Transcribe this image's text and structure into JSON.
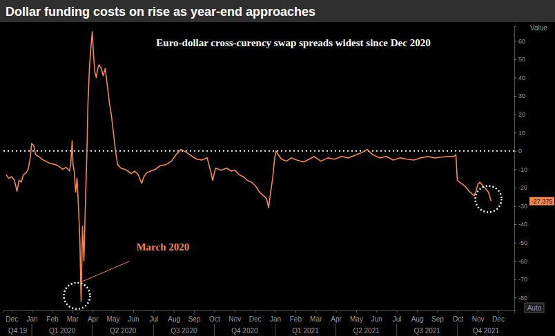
{
  "chart_data": {
    "type": "line",
    "title": "Dollar funding costs on rise as year-end approaches",
    "subtitle": "Euro-dollar cross-curency swap spreads widest since Dec 2020",
    "y_label": "Value",
    "color": "#f5874f",
    "x": [
      -0.27,
      -0.14,
      0,
      0.14,
      0.27,
      0.37,
      0.48,
      0.58,
      0.71,
      0.82,
      0.92,
      0.99,
      1.09,
      1.19,
      1.33,
      1.5,
      1.67,
      1.84,
      2.01,
      2.18,
      2.35,
      2.52,
      2.69,
      2.86,
      2.92,
      2.99,
      3.03,
      3.09,
      3.16,
      3.23,
      3.3,
      3.37,
      3.43,
      3.5,
      3.57,
      3.64,
      3.71,
      3.77,
      3.84,
      3.91,
      3.98,
      4.04,
      4.11,
      4.18,
      4.25,
      4.32,
      4.42,
      4.52,
      4.62,
      4.72,
      4.83,
      4.93,
      5.03,
      5.13,
      5.23,
      5.4,
      5.57,
      5.74,
      5.91,
      6.08,
      6.25,
      6.42,
      6.53,
      6.66,
      6.87,
      7.1,
      7.34,
      7.61,
      7.89,
      8.12,
      8.36,
      8.63,
      8.91,
      9.14,
      9.38,
      9.65,
      9.82,
      9.92,
      10.06,
      10.33,
      10.61,
      10.84,
      11.01,
      11.22,
      11.42,
      11.62,
      11.83,
      12.03,
      12.24,
      12.44,
      12.58,
      12.68,
      12.78,
      12.88,
      12.98,
      13.05,
      13.15,
      13.32,
      13.56,
      13.8,
      14.07,
      14.41,
      14.68,
      14.92,
      15.26,
      15.6,
      15.94,
      16.28,
      16.62,
      16.96,
      17.3,
      17.54,
      17.81,
      18.15,
      18.49,
      18.83,
      19.17,
      19.51,
      19.85,
      20.19,
      20.53,
      20.87,
      21.21,
      21.55,
      21.82,
      21.92,
      21.99,
      22.09,
      22.23,
      22.4,
      22.57,
      22.71,
      22.81,
      22.91,
      23.01,
      23.11,
      23.25,
      23.39,
      23.53,
      23.66
    ],
    "values": [
      -13,
      -15,
      -14,
      -16,
      -22,
      -16,
      -17,
      -13,
      -12,
      -10,
      -4,
      4,
      3,
      -2,
      -3,
      -4.5,
      -5.5,
      -6.5,
      -7,
      -7.5,
      -8.5,
      -10,
      -9,
      -11,
      -7,
      5.5,
      -7.5,
      -11,
      -22.5,
      -15,
      -30,
      -49,
      -82,
      -41,
      -60,
      -30,
      -4,
      26,
      45,
      56,
      65,
      53,
      43,
      40,
      45,
      47,
      45,
      41,
      45,
      36,
      26,
      19,
      9.4,
      0,
      -7.5,
      -9.4,
      -10,
      -11,
      -12.4,
      -11,
      -13,
      -17.7,
      -14,
      -12,
      -11,
      -10,
      -8,
      -7.5,
      -5.6,
      -2,
      0.8,
      -0.8,
      -3,
      -4.5,
      -5,
      -3.8,
      -11,
      -16,
      -9.4,
      -10.5,
      -9.4,
      -11,
      -10.5,
      -13,
      -14,
      -16,
      -17,
      -19,
      -22.6,
      -24.5,
      -26,
      -31,
      -22.6,
      -15,
      -3.8,
      0,
      -2,
      -4.5,
      -5.6,
      -3.8,
      -5,
      -6,
      -4.5,
      -3,
      -5.6,
      -3.8,
      -4.5,
      -3,
      -3.8,
      -2.3,
      -0.8,
      0.8,
      -2,
      -3.8,
      -3,
      -5,
      -3.8,
      -4.5,
      -5,
      -3.8,
      -3,
      -3.8,
      -3.4,
      -3,
      -3,
      -2,
      -16,
      -17,
      -18,
      -19.6,
      -22,
      -23.3,
      -24.5,
      -22,
      -18,
      -17,
      -19,
      -20.7,
      -22.6,
      -27.375
    ],
    "xlim": [
      -0.4,
      24.8
    ],
    "xticks": [
      {
        "value": 0,
        "label": "Dec"
      },
      {
        "value": 1,
        "label": "Jan"
      },
      {
        "value": 2,
        "label": "Feb"
      },
      {
        "value": 3,
        "label": "Mar"
      },
      {
        "value": 4,
        "label": "Apr"
      },
      {
        "value": 5,
        "label": "May"
      },
      {
        "value": 6,
        "label": "Jun"
      },
      {
        "value": 7,
        "label": "Jul"
      },
      {
        "value": 8,
        "label": "Aug"
      },
      {
        "value": 9,
        "label": "Sep"
      },
      {
        "value": 10,
        "label": "Oct"
      },
      {
        "value": 11,
        "label": "Nov"
      },
      {
        "value": 12,
        "label": "Dec"
      },
      {
        "value": 13,
        "label": "Jan"
      },
      {
        "value": 14,
        "label": "Feb"
      },
      {
        "value": 15,
        "label": "Mar"
      },
      {
        "value": 16,
        "label": "Apr"
      },
      {
        "value": 17,
        "label": "May"
      },
      {
        "value": 18,
        "label": "Jun"
      },
      {
        "value": 19,
        "label": "Jul"
      },
      {
        "value": 20,
        "label": "Aug"
      },
      {
        "value": 21,
        "label": "Sep"
      },
      {
        "value": 22,
        "label": "Oct"
      },
      {
        "value": 23,
        "label": "Nov"
      },
      {
        "value": 24,
        "label": "Dec"
      }
    ],
    "quarter_ticks": [
      {
        "value": 0.3,
        "label": "Q4 19"
      },
      {
        "value": 2.5,
        "label": "Q1 2020"
      },
      {
        "value": 5.5,
        "label": "Q2 2020"
      },
      {
        "value": 8.5,
        "label": "Q3 2020"
      },
      {
        "value": 11.5,
        "label": "Q4 2020"
      },
      {
        "value": 14.5,
        "label": "Q1 2021"
      },
      {
        "value": 17.5,
        "label": "Q2 2021"
      },
      {
        "value": 20.5,
        "label": "Q3 2021"
      },
      {
        "value": 23.4,
        "label": "Q4 2021"
      }
    ],
    "quarter_bounds": [
      1,
      4,
      7,
      10,
      13,
      16,
      19,
      22
    ],
    "ylim": [
      -87,
      68
    ],
    "yticks": [
      60,
      50,
      40,
      30,
      20,
      10,
      0,
      -10,
      -20,
      -30,
      -40,
      -50,
      -60,
      -70,
      -80
    ],
    "reference_line": 0,
    "annotations": [
      {
        "text": "March 2020"
      }
    ],
    "controls": [
      "Auto"
    ],
    "grid": false
  }
}
